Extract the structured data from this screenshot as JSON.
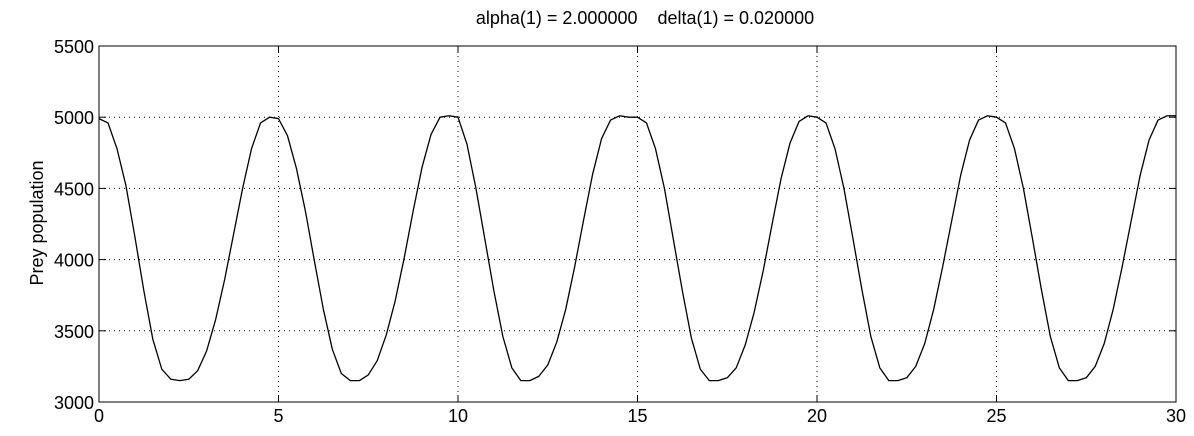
{
  "chart_data": {
    "type": "line",
    "title": "alpha(1) = 2.000000    delta(1) = 0.020000",
    "xlabel": "",
    "ylabel": "Prey population",
    "xlim": [
      0,
      30
    ],
    "ylim": [
      3000,
      5500
    ],
    "xticks": [
      0,
      5,
      10,
      15,
      20,
      25,
      30
    ],
    "yticks": [
      3000,
      3500,
      4000,
      4500,
      5000,
      5500
    ],
    "grid": true,
    "series": [
      {
        "name": "",
        "x": [
          0,
          0.25,
          0.5,
          0.75,
          1,
          1.25,
          1.5,
          1.75,
          2,
          2.25,
          2.5,
          2.75,
          3,
          3.25,
          3.5,
          3.75,
          4,
          4.25,
          4.5,
          4.75,
          5,
          5.25,
          5.5,
          5.75,
          6,
          6.25,
          6.5,
          6.75,
          7,
          7.25,
          7.5,
          7.75,
          8,
          8.25,
          8.5,
          8.75,
          9,
          9.25,
          9.5,
          9.75,
          10,
          10.25,
          10.5,
          10.75,
          11,
          11.25,
          11.5,
          11.75,
          12,
          12.25,
          12.5,
          12.75,
          13,
          13.25,
          13.5,
          13.75,
          14,
          14.25,
          14.5,
          14.75,
          15,
          15.25,
          15.5,
          15.75,
          16,
          16.25,
          16.5,
          16.75,
          17,
          17.25,
          17.5,
          17.75,
          18,
          18.25,
          18.5,
          18.75,
          19,
          19.25,
          19.5,
          19.75,
          20,
          20.25,
          20.5,
          20.75,
          21,
          21.25,
          21.5,
          21.75,
          22,
          22.25,
          22.5,
          22.75,
          23,
          23.25,
          23.5,
          23.75,
          24,
          24.25,
          24.5,
          24.75,
          25,
          25.25,
          25.5,
          25.75,
          26,
          26.25,
          26.5,
          26.75,
          27,
          27.25,
          27.5,
          27.75,
          28,
          28.25,
          28.5,
          28.75,
          29,
          29.25,
          29.5,
          29.75,
          30
        ],
        "y": [
          4990,
          4960,
          4780,
          4520,
          4160,
          3780,
          3440,
          3230,
          3160,
          3150,
          3160,
          3220,
          3360,
          3580,
          3860,
          4180,
          4500,
          4780,
          4960,
          5000,
          4990,
          4870,
          4640,
          4340,
          3990,
          3650,
          3370,
          3200,
          3150,
          3150,
          3190,
          3290,
          3470,
          3710,
          4010,
          4340,
          4650,
          4880,
          5000,
          5010,
          5000,
          4810,
          4500,
          4140,
          3780,
          3460,
          3240,
          3150,
          3150,
          3180,
          3260,
          3420,
          3650,
          3950,
          4280,
          4600,
          4850,
          4980,
          5010,
          5000,
          5000,
          4960,
          4780,
          4500,
          4140,
          3780,
          3450,
          3230,
          3150,
          3150,
          3170,
          3240,
          3400,
          3630,
          3920,
          4250,
          4570,
          4820,
          4970,
          5010,
          5000,
          4960,
          4780,
          4500,
          4150,
          3790,
          3460,
          3240,
          3150,
          3150,
          3170,
          3250,
          3410,
          3650,
          3950,
          4270,
          4590,
          4840,
          4980,
          5010,
          5000,
          4960,
          4780,
          4500,
          4150,
          3790,
          3460,
          3240,
          3150,
          3150,
          3170,
          3250,
          3410,
          3650,
          3950,
          4270,
          4590,
          4840,
          4980,
          5010,
          5010
        ]
      }
    ]
  }
}
